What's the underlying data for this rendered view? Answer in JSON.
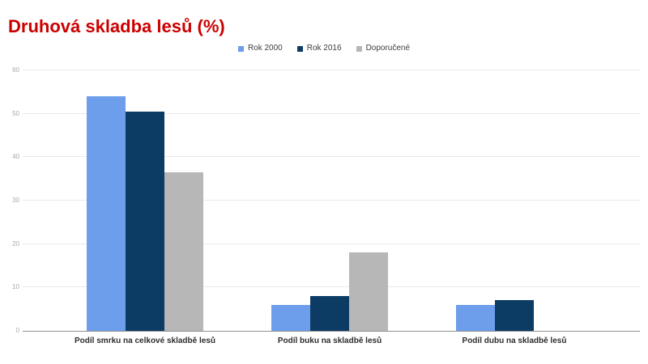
{
  "chart_data": {
    "type": "bar",
    "title": "Druhová skladba lesů (%)",
    "categories": [
      "Podíl smrku na celkové skladbě lesů",
      "Podíl buku na skladbě lesů",
      "Podíl dubu na skladbě lesů"
    ],
    "series": [
      {
        "name": "Rok 2000",
        "color": "#6d9eeb",
        "values": [
          54,
          6,
          6
        ]
      },
      {
        "name": "Rok 2016",
        "color": "#0c3b63",
        "values": [
          50.5,
          8,
          7
        ]
      },
      {
        "name": "Doporučené",
        "color": "#b7b7b7",
        "values": [
          36.5,
          18,
          0
        ]
      }
    ],
    "xlabel": "",
    "ylabel": "",
    "ylim": [
      0,
      60
    ],
    "yticks": [
      0,
      10,
      20,
      30,
      40,
      50,
      60
    ],
    "grid": true,
    "legend_position": "top-center"
  },
  "style": {
    "title_color": "#cc0000",
    "background": "#ffffff",
    "gridline_color": "#e9e9e9",
    "baseline_color": "#8f8f8f",
    "tick_label_color": "#a8a8a8",
    "category_label_color": "#2d2d2d",
    "legend_label_color": "#3c4043"
  }
}
